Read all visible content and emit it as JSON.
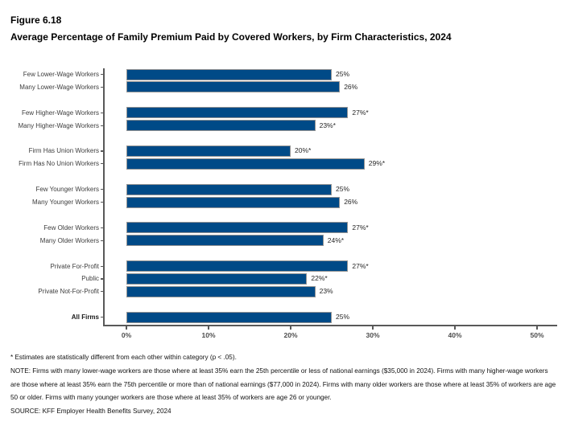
{
  "title": {
    "figure": "Figure 6.18",
    "main": "Average Percentage of Family Premium Paid by Covered Workers, by Firm Characteristics, 2024"
  },
  "chart_data": {
    "type": "bar",
    "orientation": "horizontal",
    "title": "Average Percentage of Family Premium Paid by Covered Workers, by Firm Characteristics, 2024",
    "xlabel": "",
    "ylabel": "",
    "xlim": [
      0,
      52
    ],
    "grid": false,
    "legend": "none",
    "x_ticks": [
      "0%",
      "10%",
      "20%",
      "30%",
      "40%",
      "50%"
    ],
    "x_tick_values": [
      0,
      10,
      20,
      30,
      40,
      50
    ],
    "bar_color": "#004a87",
    "bar_border_color": "#949494",
    "axis_color": "#595959",
    "groups": [
      {
        "category": "lower-wage",
        "rows": [
          {
            "label": "Few Lower-Wage Workers",
            "value": 25,
            "display": "25%"
          },
          {
            "label": "Many Lower-Wage Workers",
            "value": 26,
            "display": "26%"
          }
        ]
      },
      {
        "category": "higher-wage",
        "rows": [
          {
            "label": "Few Higher-Wage Workers",
            "value": 27,
            "display": "27%*"
          },
          {
            "label": "Many Higher-Wage Workers",
            "value": 23,
            "display": "23%*"
          }
        ]
      },
      {
        "category": "union",
        "rows": [
          {
            "label": "Firm Has Union Workers",
            "value": 20,
            "display": "20%*"
          },
          {
            "label": "Firm Has No Union Workers",
            "value": 29,
            "display": "29%*"
          }
        ]
      },
      {
        "category": "younger",
        "rows": [
          {
            "label": "Few Younger Workers",
            "value": 25,
            "display": "25%"
          },
          {
            "label": "Many Younger Workers",
            "value": 26,
            "display": "26%"
          }
        ]
      },
      {
        "category": "older",
        "rows": [
          {
            "label": "Few Older Workers",
            "value": 27,
            "display": "27%*"
          },
          {
            "label": "Many Older Workers",
            "value": 24,
            "display": "24%*"
          }
        ]
      },
      {
        "category": "ownership",
        "rows": [
          {
            "label": "Private For-Profit",
            "value": 27,
            "display": "27%*"
          },
          {
            "label": "Public",
            "value": 22,
            "display": "22%*"
          },
          {
            "label": "Private Not-For-Profit",
            "value": 23,
            "display": "23%"
          }
        ]
      },
      {
        "category": "all",
        "rows": [
          {
            "label": "All Firms",
            "value": 25,
            "display": "25%",
            "bold": true
          }
        ]
      }
    ]
  },
  "footnotes": {
    "asterisk": "* Estimates are statistically different from each other within category (p < .05).",
    "note": "NOTE: Firms with many lower-wage workers are those where at least 35% earn the 25th percentile or less of national earnings ($35,000 in 2024). Firms with many higher-wage workers are those where at least 35% earn the 75th percentile or more than of national earnings ($77,000 in 2024). Firms with many older workers are those where at least 35% of workers are age 50 or older. Firms with many younger workers are those where at least 35% of workers are age 26 or younger.",
    "source": "SOURCE: KFF Employer Health Benefits Survey, 2024"
  }
}
